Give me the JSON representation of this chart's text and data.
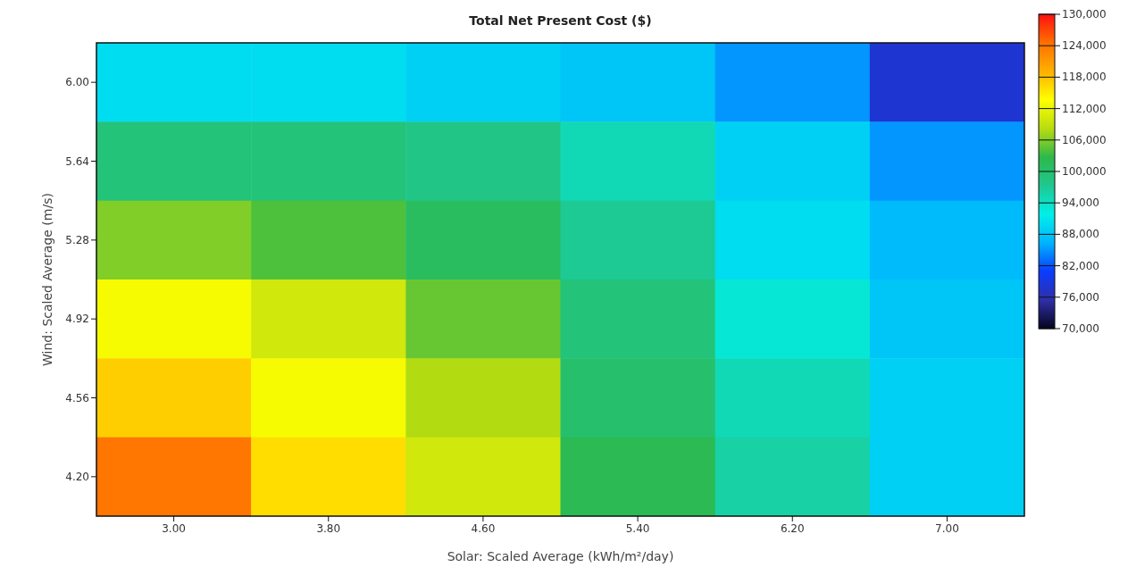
{
  "chart_data": {
    "type": "heatmap",
    "title": "Total Net Present Cost ($)",
    "xlabel": "Solar: Scaled Average (kWh/m²/day)",
    "ylabel": "Wind: Scaled Average (m/s)",
    "categories": [
      "3.00",
      "3.80",
      "4.60",
      "5.40",
      "6.20",
      "7.00"
    ],
    "y_categories": [
      "6.00",
      "5.64",
      "5.28",
      "4.92",
      "4.56",
      "4.20"
    ],
    "cells": [
      [
        90000,
        90000,
        89000,
        88000,
        85000,
        78000
      ],
      [
        99000,
        99000,
        98000,
        95000,
        89000,
        85000
      ],
      [
        106000,
        104000,
        101000,
        97000,
        90000,
        87000
      ],
      [
        113000,
        110000,
        105000,
        99000,
        93000,
        88000
      ],
      [
        117000,
        113000,
        108000,
        100000,
        95000,
        89000
      ],
      [
        124000,
        116000,
        110000,
        102000,
        96000,
        89000
      ]
    ],
    "clim": [
      70000,
      130000
    ],
    "cticks": [
      {
        "value": 70000,
        "label": "70,000"
      },
      {
        "value": 76000,
        "label": "76,000"
      },
      {
        "value": 82000,
        "label": "82,000"
      },
      {
        "value": 88000,
        "label": "88,000"
      },
      {
        "value": 94000,
        "label": "94,000"
      },
      {
        "value": 100000,
        "label": "100,000"
      },
      {
        "value": 106000,
        "label": "106,000"
      },
      {
        "value": 112000,
        "label": "112,000"
      },
      {
        "value": 118000,
        "label": "118,000"
      },
      {
        "value": 124000,
        "label": "124,000"
      },
      {
        "value": 130000,
        "label": "130,000"
      }
    ]
  }
}
